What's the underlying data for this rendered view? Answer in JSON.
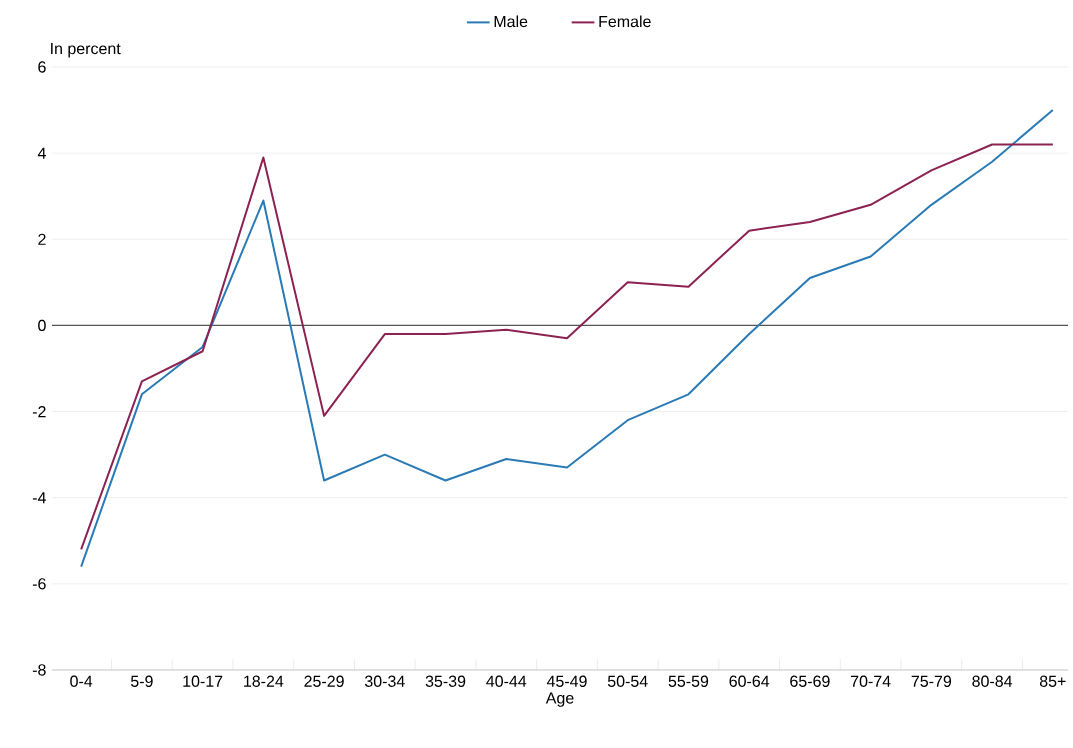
{
  "chart_data": {
    "type": "line",
    "xlabel": "Age",
    "ylabel": "In percent",
    "categories": [
      "0-4",
      "5-9",
      "10-17",
      "18-24",
      "25-29",
      "30-34",
      "35-39",
      "40-44",
      "45-49",
      "50-54",
      "55-59",
      "60-64",
      "65-69",
      "70-74",
      "75-79",
      "80-84",
      "85+"
    ],
    "series": [
      {
        "name": "Male",
        "color": "#2a7ab5",
        "values": [
          -5.6,
          -1.6,
          -0.5,
          2.9,
          -3.6,
          -3.0,
          -3.6,
          -3.1,
          -3.3,
          -2.2,
          -1.6,
          -0.2,
          1.1,
          1.6,
          2.8,
          3.8,
          5.0
        ]
      },
      {
        "name": "Female",
        "color": "#8b2252",
        "values": [
          -5.2,
          -1.3,
          -0.6,
          3.9,
          -2.1,
          -0.2,
          -0.2,
          -0.1,
          -0.3,
          1.0,
          0.9,
          2.2,
          2.4,
          2.8,
          3.6,
          4.2,
          4.2
        ]
      }
    ],
    "ylim": [
      -8,
      6
    ],
    "yticks": [
      -8,
      -6,
      -4,
      -2,
      0,
      2,
      4,
      6
    ],
    "ref_lines": [
      {
        "axis": "y",
        "value": 0,
        "color": "#555555"
      }
    ],
    "grid": "y",
    "legend": "top",
    "marker": "none",
    "line_style": "solid"
  }
}
